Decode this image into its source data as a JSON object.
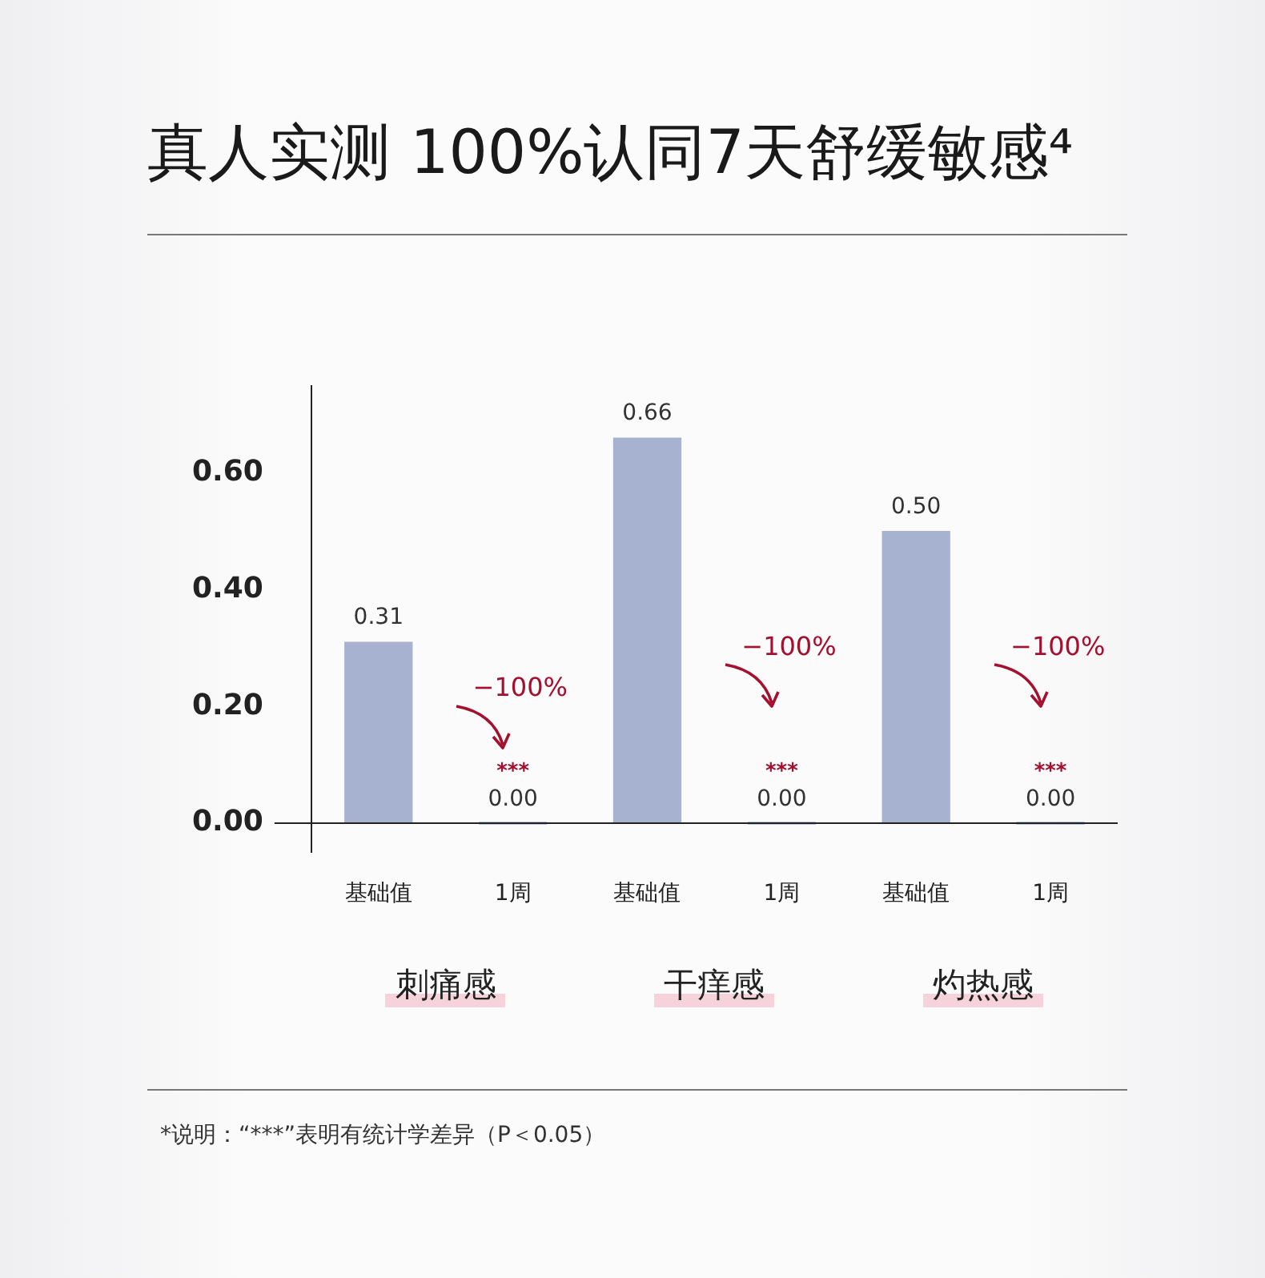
{
  "chart_data": {
    "type": "bar",
    "title": "真人实测 100%认同7天舒缓敏感⁴",
    "categories": [
      "基础值",
      "1周",
      "基础值",
      "1周",
      "基础值",
      "1周"
    ],
    "values": [
      0.31,
      0,
      0.66,
      0,
      0.5,
      0
    ],
    "value_labels": [
      "0.31",
      "0.00",
      "0.66",
      "0.00",
      "0.50",
      "0.00"
    ],
    "color": "#a7b2d1",
    "ylim": [
      -0.05,
      0.75
    ],
    "yticks": [
      {
        "value": 0,
        "label": "0.00"
      },
      {
        "value": 0.2,
        "label": "0.20"
      },
      {
        "value": 0.4,
        "label": "0.40"
      },
      {
        "value": 0.6,
        "label": "0.60"
      }
    ],
    "grid": false,
    "legend": false,
    "annotations": [
      "刺痛感",
      "干痒感",
      "灼热感",
      "−100%",
      "−100%",
      "−100%",
      "***",
      "***",
      "***",
      "*说明：“***”表明有统计学差异（P＜0.05）"
    ]
  }
}
